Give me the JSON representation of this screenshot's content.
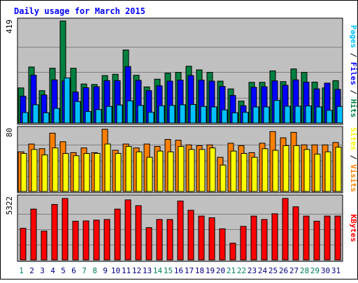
{
  "chart_data": {
    "type": "bar",
    "title": "Daily usage for March 2015",
    "days": [
      "1",
      "2",
      "3",
      "4",
      "5",
      "6",
      "7",
      "8",
      "9",
      "10",
      "11",
      "12",
      "13",
      "14",
      "15",
      "16",
      "17",
      "18",
      "19",
      "20",
      "21",
      "22",
      "23",
      "24",
      "25",
      "26",
      "27",
      "28",
      "29",
      "30",
      "31"
    ],
    "weekend_days": [
      "1",
      "7",
      "8",
      "14",
      "15",
      "21",
      "22",
      "28",
      "29"
    ],
    "panels": [
      {
        "id": "hits",
        "max_label": "419",
        "ylim": [
          0,
          419
        ],
        "series": [
          {
            "name": "Hits",
            "color": "#008040",
            "values": [
              144,
              230,
              133,
              225,
              419,
              225,
              160,
              158,
              195,
              200,
              300,
              196,
              148,
              180,
              205,
              208,
              233,
              218,
              208,
              172,
              140,
              90,
              167,
              167,
              214,
              170,
              222,
              208,
              168,
              144,
              174
            ]
          },
          {
            "name": "Files",
            "color": "#0000FF",
            "values": [
              110,
              196,
              115,
              177,
              173,
              127,
              145,
              149,
              174,
              174,
              232,
              175,
              133,
              153,
              172,
              176,
              195,
              176,
              172,
              150,
              113,
              71,
              147,
              149,
              173,
              155,
              177,
              168,
              140,
              164,
              138
            ]
          },
          {
            "name": "Pages",
            "color": "#00C0FF",
            "values": [
              43,
              75,
              42,
              60,
              185,
              88,
              47,
              55,
              68,
              74,
              91,
              72,
              44,
              71,
              72,
              75,
              76,
              68,
              66,
              54,
              42,
              44,
              66,
              66,
              93,
              69,
              69,
              70,
              66,
              52,
              68
            ]
          }
        ]
      },
      {
        "id": "visits",
        "max_label": "80",
        "ylim": [
          0,
          80
        ],
        "series": [
          {
            "name": "Visits",
            "color": "#FF8000",
            "values": [
              51,
              61,
              55,
              75,
              64,
              50,
              56,
              50,
              80,
              53,
              61,
              56,
              61,
              58,
              67,
              66,
              60,
              59,
              60,
              44,
              62,
              59,
              50,
              62,
              77,
              69,
              76,
              60,
              60,
              60,
              63
            ]
          },
          {
            "name": "Sites",
            "color": "#FFFF00",
            "values": [
              49,
              54,
              47,
              56,
              49,
              46,
              49,
              49,
              61,
              49,
              58,
              51,
              44,
              52,
              51,
              58,
              54,
              54,
              56,
              34,
              52,
              49,
              44,
              55,
              53,
              59,
              59,
              54,
              48,
              51,
              57
            ]
          }
        ]
      },
      {
        "id": "kbytes",
        "max_label": "5322",
        "ylim": [
          0,
          5322
        ],
        "series": [
          {
            "name": "KBytes",
            "color": "#FF0000",
            "values": [
              2740,
              4400,
              2500,
              4800,
              5322,
              3350,
              3380,
              3450,
              3500,
              4400,
              5200,
              4700,
              2800,
              3500,
              3500,
              5100,
              4300,
              3800,
              3650,
              2700,
              1450,
              2900,
              3800,
              3500,
              4000,
              5322,
              4600,
              3800,
              3350,
              3800,
              3800
            ]
          }
        ]
      }
    ]
  },
  "colors": {
    "background": "#ffffff",
    "plot_bg": "#C0C0C0",
    "title": "#0000FF",
    "weekday_label": "#000080",
    "weekend_label": "#00805C",
    "axis_label": "#000000",
    "gridline": "#808080",
    "bar_edge": "#000000"
  }
}
